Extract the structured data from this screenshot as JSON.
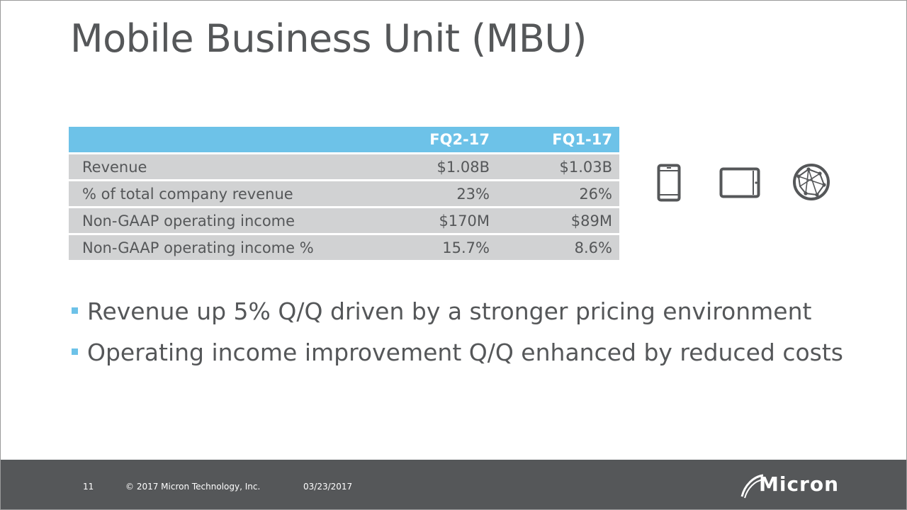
{
  "slide": {
    "title": "Mobile Business Unit (MBU)"
  },
  "table": {
    "headers": [
      "",
      "FQ2-17",
      "FQ1-17"
    ],
    "rows": [
      {
        "label": "Revenue",
        "fq2": "$1.08B",
        "fq1": "$1.03B"
      },
      {
        "label": "% of total company revenue",
        "fq2": "23%",
        "fq1": "26%"
      },
      {
        "label": "Non-GAAP operating income",
        "fq2": "$170M",
        "fq1": "$89M"
      },
      {
        "label": "Non-GAAP operating income %",
        "fq2": "15.7%",
        "fq1": "8.6%"
      }
    ]
  },
  "icons": [
    "smartphone-icon",
    "tablet-icon",
    "globe-network-icon"
  ],
  "bullets": [
    "Revenue up 5% Q/Q driven by a stronger pricing environment",
    "Operating income improvement Q/Q enhanced by reduced costs"
  ],
  "footer": {
    "page_number": "11",
    "copyright": "© 2017 Micron Technology, Inc.",
    "date": "03/23/2017",
    "logo_text": "Micron"
  },
  "colors": {
    "accent_blue": "#6dc2e8",
    "row_gray": "#d1d2d3",
    "text_gray": "#555759",
    "footer_bg": "#555759"
  }
}
